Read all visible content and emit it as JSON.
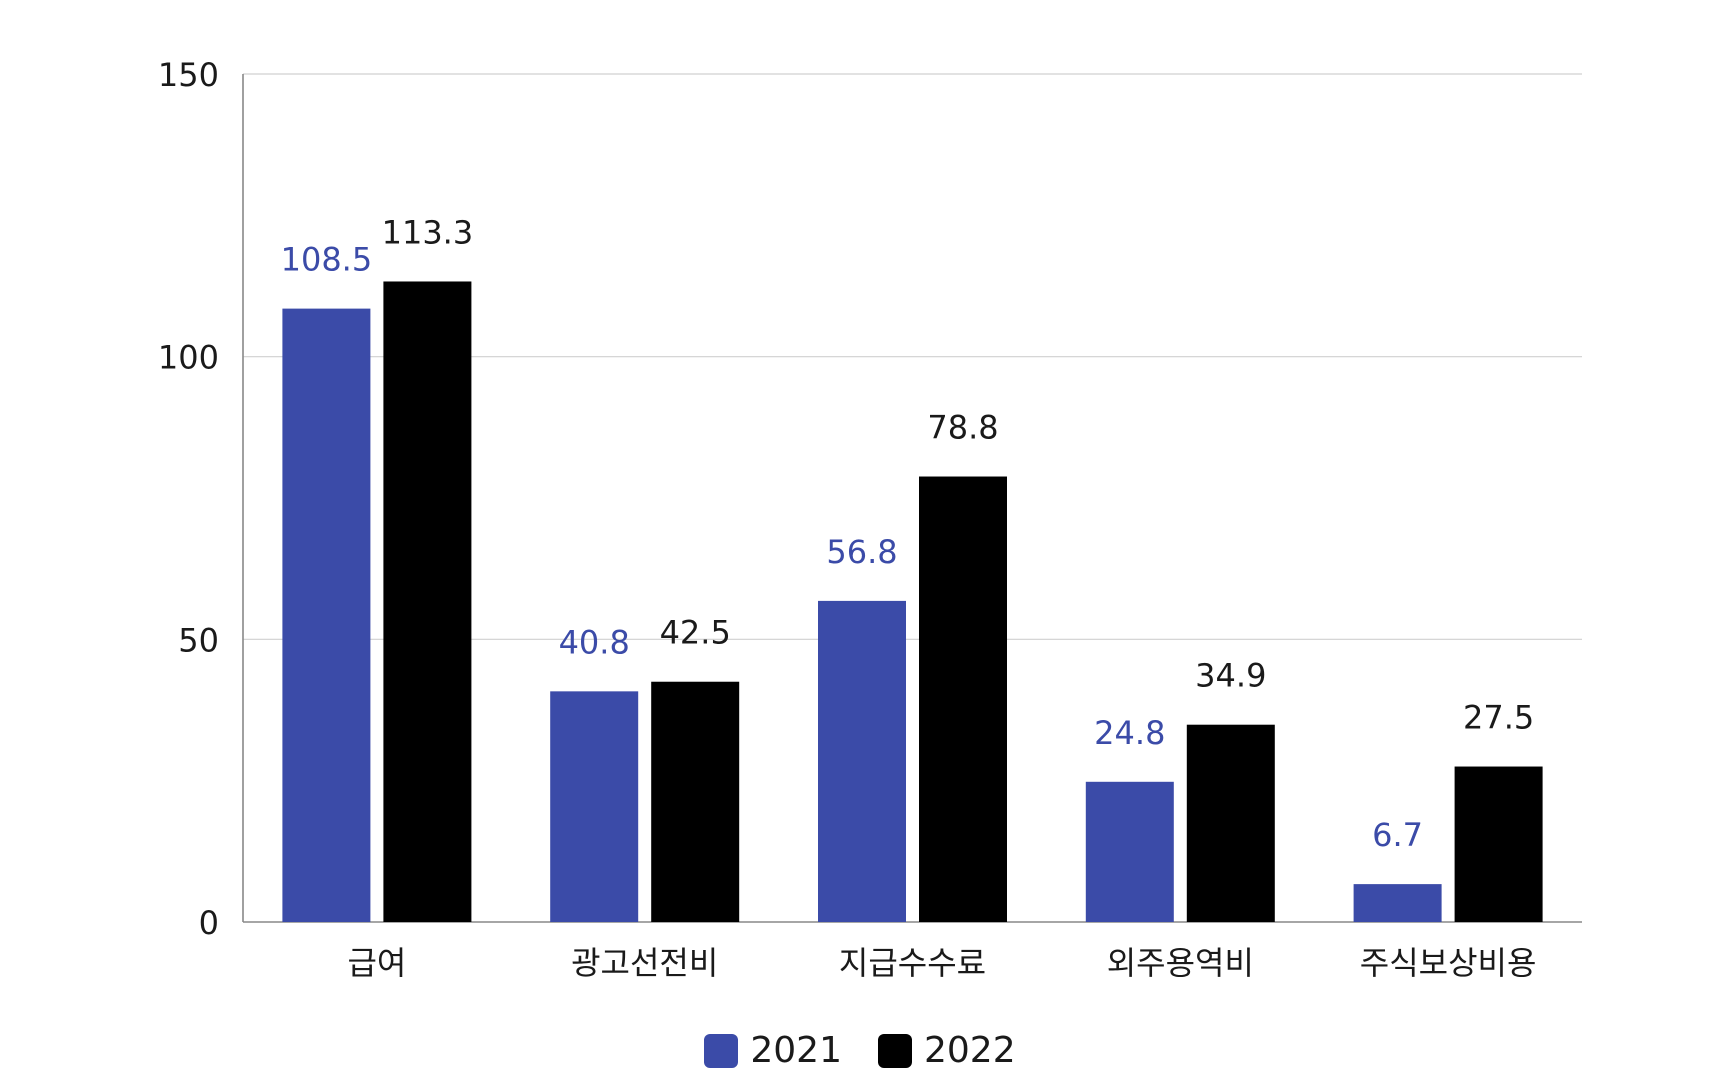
{
  "chart_data": {
    "type": "bar",
    "categories": [
      "급여",
      "광고선전비",
      "지급수수료",
      "외주용역비",
      "주식보상비용"
    ],
    "series": [
      {
        "name": "2021",
        "values": [
          108.5,
          40.8,
          56.8,
          24.8,
          6.7
        ],
        "color": "#3b4ba8",
        "label_color": "#3b4ba8"
      },
      {
        "name": "2022",
        "values": [
          113.3,
          42.5,
          78.8,
          34.9,
          27.5
        ],
        "color": "#000000",
        "label_color": "#1a1a1a"
      }
    ],
    "value_labels": [
      [
        "108.5",
        "40.8",
        "56.8",
        "24.8",
        "6.7"
      ],
      [
        "113.3",
        "42.5",
        "78.8",
        "34.9",
        "27.5"
      ]
    ],
    "yticks": [
      0,
      50,
      100,
      150
    ],
    "ytick_labels": [
      "0",
      "50",
      "100",
      "150"
    ],
    "ylim": [
      0,
      150
    ],
    "grid": true,
    "legend_position": "bottom-center"
  }
}
